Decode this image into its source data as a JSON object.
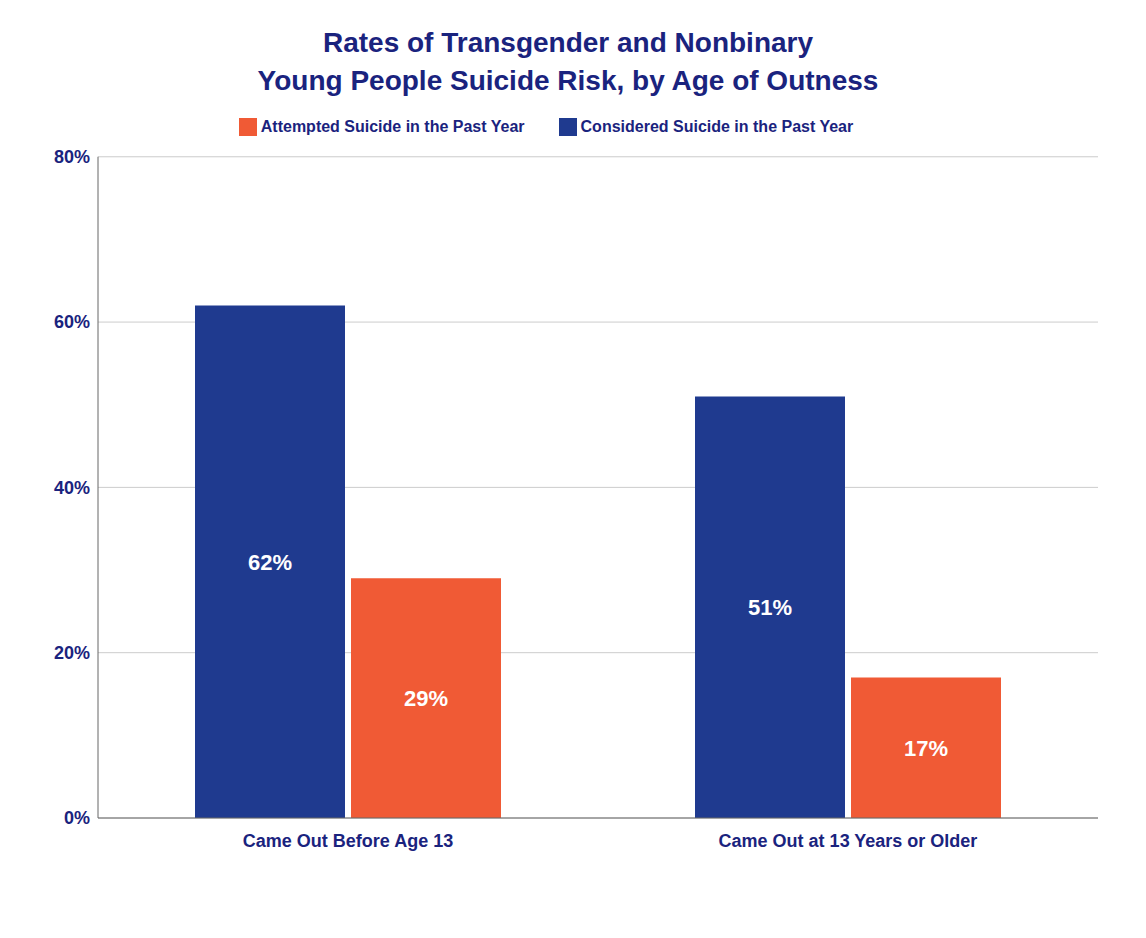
{
  "chart_data": {
    "type": "bar",
    "title": "Rates of Transgender and Nonbinary\nYoung People Suicide Risk, by Age of Outness",
    "categories": [
      "Came Out Before Age 13",
      "Came Out at 13 Years or Older"
    ],
    "series": [
      {
        "name": "Considered Suicide in the Past Year",
        "color": "#1f3a8f",
        "values": [
          62,
          51
        ],
        "value_labels": [
          "62%",
          "51%"
        ]
      },
      {
        "name": "Attempted Suicide in the Past Year",
        "color": "#f05a35",
        "values": [
          29,
          17
        ],
        "value_labels": [
          "29%",
          "17%"
        ]
      }
    ],
    "ylim": [
      0,
      80
    ],
    "yticks": [
      {
        "value": 0,
        "label": "0%"
      },
      {
        "value": 20,
        "label": "20%"
      },
      {
        "value": 40,
        "label": "40%"
      },
      {
        "value": 60,
        "label": "60%"
      },
      {
        "value": 80,
        "label": "80%"
      }
    ],
    "grid": true,
    "legend": "top",
    "data_labels": true
  }
}
